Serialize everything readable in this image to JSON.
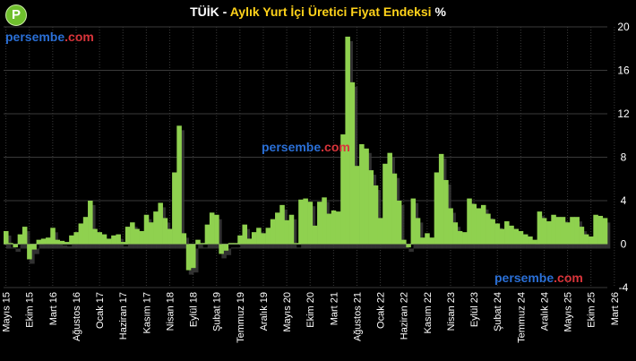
{
  "title": {
    "main": "TÜİK - ",
    "sub": "Aylık Yurt İçi Üretici Fiyat Endeksi",
    "suffix": " %"
  },
  "logo": {
    "letter": "P",
    "icon": "persembe-logo-icon",
    "color": "#6fbf2d"
  },
  "watermarks": [
    {
      "part1": "persembe",
      "part2": ".com"
    },
    {
      "part1": "persembe",
      "part2": ".com"
    },
    {
      "part1": "persembe",
      "part2": ".com"
    }
  ],
  "colors": {
    "bar": "#8fd14f",
    "background": "#000000",
    "grid": "#3a3a3a",
    "title_sub": "#ffd21a",
    "watermark_blue": "#2a6fd6",
    "watermark_red": "#d9343a"
  },
  "chart_data": {
    "type": "bar",
    "x_start": "2015-05",
    "ylim": [
      -4,
      20
    ],
    "yticks": [
      -4,
      0,
      4,
      8,
      12,
      16,
      20
    ],
    "grid": true,
    "xlabel": "",
    "ylabel": "",
    "tick_labels": [
      {
        "index": 0,
        "label": "Mayıs 15"
      },
      {
        "index": 5,
        "label": "Ekim 15"
      },
      {
        "index": 10,
        "label": "Mart 16"
      },
      {
        "index": 15,
        "label": "Ağustos 16"
      },
      {
        "index": 20,
        "label": "Ocak 17"
      },
      {
        "index": 25,
        "label": "Haziran 17"
      },
      {
        "index": 30,
        "label": "Kasım 17"
      },
      {
        "index": 35,
        "label": "Nisan 18"
      },
      {
        "index": 40,
        "label": "Eylül 18"
      },
      {
        "index": 45,
        "label": "Şubat 19"
      },
      {
        "index": 50,
        "label": "Temmuz 19"
      },
      {
        "index": 55,
        "label": "Aralık 19"
      },
      {
        "index": 60,
        "label": "Mayıs 20"
      },
      {
        "index": 65,
        "label": "Ekim 20"
      },
      {
        "index": 70,
        "label": "Mart 21"
      },
      {
        "index": 75,
        "label": "Ağustos 21"
      },
      {
        "index": 80,
        "label": "Ocak 22"
      },
      {
        "index": 85,
        "label": "Haziran 22"
      },
      {
        "index": 90,
        "label": "Kasım 22"
      },
      {
        "index": 95,
        "label": "Nisan 23"
      },
      {
        "index": 100,
        "label": "Eylül 23"
      },
      {
        "index": 105,
        "label": "Şubat 24"
      },
      {
        "index": 110,
        "label": "Temmuz 24"
      },
      {
        "index": 115,
        "label": "Aralık 24"
      },
      {
        "index": 120,
        "label": "Mayıs 25"
      },
      {
        "index": 125,
        "label": "Ekim 25"
      },
      {
        "index": 130,
        "label": "Mart 26"
      }
    ],
    "values": [
      1.2,
      0.1,
      -0.3,
      0.9,
      1.6,
      -1.4,
      -0.5,
      0.4,
      0.5,
      0.6,
      1.5,
      0.4,
      0.3,
      0.2,
      0.8,
      1.1,
      1.9,
      2.5,
      4.0,
      1.4,
      1.1,
      0.9,
      0.5,
      0.8,
      0.9,
      0.2,
      1.6,
      2.0,
      1.4,
      1.2,
      2.7,
      2.0,
      3.0,
      3.8,
      2.4,
      1.4,
      6.6,
      10.9,
      1.0,
      -2.4,
      -2.2,
      0.4,
      0.1,
      1.8,
      2.9,
      2.7,
      -0.9,
      -0.6,
      0.1,
      0.1,
      0.8,
      1.8,
      0.5,
      1.1,
      1.5,
      1.0,
      1.5,
      2.3,
      2.9,
      3.6,
      2.2,
      2.7,
      0.1,
      4.1,
      4.2,
      3.9,
      1.7,
      3.9,
      4.3,
      2.8,
      3.1,
      3.0,
      10.1,
      19.1,
      14.9,
      7.2,
      9.2,
      8.8,
      6.8,
      5.4,
      2.4,
      7.4,
      8.4,
      6.5,
      4.0,
      0.4,
      -0.3,
      4.2,
      2.4,
      0.6,
      1.0,
      0.6,
      6.6,
      8.3,
      5.9,
      3.3,
      2.0,
      1.2,
      1.1,
      4.2,
      3.7,
      3.3,
      3.6,
      2.8,
      2.3,
      1.9,
      1.4,
      2.1,
      1.7,
      1.4,
      1.2,
      0.9,
      0.7,
      0.4,
      3.0,
      2.4,
      2.1,
      2.7,
      2.5,
      2.5,
      2.0,
      2.5,
      2.5,
      1.6,
      0.9,
      0.7,
      2.7,
      2.6,
      2.4
    ]
  }
}
